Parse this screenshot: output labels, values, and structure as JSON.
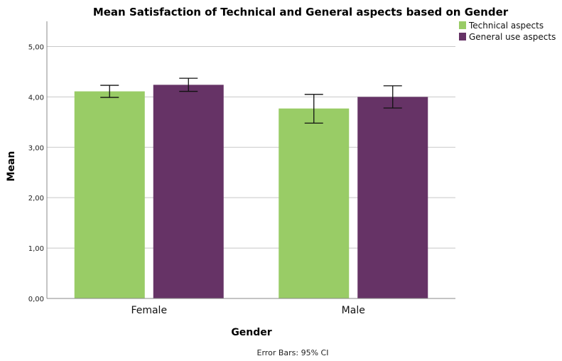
{
  "chart_data": {
    "type": "bar",
    "title": "Mean Satisfaction of Technical and General aspects based on Gender",
    "xlabel": "Gender",
    "ylabel": "Mean",
    "categories": [
      "Female",
      "Male"
    ],
    "series": [
      {
        "name": "Technical aspects",
        "color": "#99CC66",
        "values": [
          4.11,
          3.77
        ],
        "ci_low": [
          3.99,
          3.48
        ],
        "ci_high": [
          4.23,
          4.05
        ]
      },
      {
        "name": "General use aspects",
        "color": "#663366",
        "values": [
          4.24,
          4.0
        ],
        "ci_low": [
          4.11,
          3.78
        ],
        "ci_high": [
          4.37,
          4.22
        ]
      }
    ],
    "ylim": [
      0,
      5.5
    ],
    "yticks": [
      "0,00",
      "1,00",
      "2,00",
      "3,00",
      "4,00",
      "5,00"
    ],
    "ytick_values": [
      0,
      1,
      2,
      3,
      4,
      5
    ],
    "grid": true,
    "legend_position": "top-right",
    "footnote": "Error Bars: 95% CI"
  }
}
